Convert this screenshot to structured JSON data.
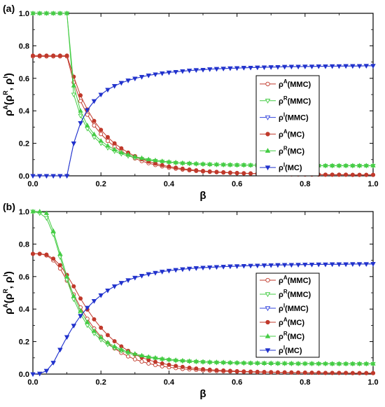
{
  "chart_data": [
    {
      "type": "line",
      "panel_label": "(a)",
      "xlabel": "β",
      "ylabel": "ρA(ρR, ρI)",
      "xlim": [
        0,
        1
      ],
      "ylim": [
        0,
        1
      ],
      "xticks": [
        "0.0",
        "0.2",
        "0.4",
        "0.6",
        "0.8",
        "1.0"
      ],
      "yticks": [
        "0.0",
        "0.2",
        "0.4",
        "0.6",
        "0.8",
        "1.0"
      ],
      "legend_position": "center-right",
      "grid": false,
      "x": [
        0,
        0.02,
        0.04,
        0.06,
        0.08,
        0.1,
        0.12,
        0.14,
        0.16,
        0.18,
        0.2,
        0.22,
        0.24,
        0.26,
        0.28,
        0.3,
        0.32,
        0.34,
        0.36,
        0.38,
        0.4,
        0.42,
        0.44,
        0.46,
        0.48,
        0.5,
        0.52,
        0.54,
        0.56,
        0.58,
        0.6,
        0.62,
        0.64,
        0.66,
        0.68,
        0.7,
        0.72,
        0.74,
        0.76,
        0.78,
        0.8,
        0.82,
        0.84,
        0.86,
        0.88,
        0.9,
        0.92,
        0.94,
        0.96,
        0.98,
        1.0
      ],
      "series": [
        {
          "name": "ρA(MMC)",
          "base": "ρ",
          "sup": "A",
          "suffix": "(MMC)",
          "color": "#c0392b",
          "marker": "circle",
          "filled": false,
          "values": [
            0.735,
            0.735,
            0.735,
            0.735,
            0.735,
            0.735,
            0.575,
            0.46,
            0.376,
            0.31,
            0.257,
            0.215,
            0.18,
            0.151,
            0.127,
            0.107,
            0.091,
            0.078,
            0.067,
            0.058,
            0.05,
            0.044,
            0.039,
            0.034,
            0.03,
            0.027,
            0.024,
            0.022,
            0.02,
            0.018,
            0.016,
            0.015,
            0.014,
            0.013,
            0.012,
            0.011,
            0.01,
            0.01,
            0.009,
            0.009,
            0.008,
            0.008,
            0.008,
            0.007,
            0.007,
            0.007,
            0.007,
            0.006,
            0.006,
            0.006,
            0.006
          ]
        },
        {
          "name": "ρR(MMC)",
          "base": "ρ",
          "sup": "R",
          "suffix": "(MMC)",
          "color": "#44cc44",
          "marker": "triangle-down",
          "filled": false,
          "values": [
            1.0,
            1.0,
            1.0,
            1.0,
            1.0,
            1.0,
            0.5,
            0.37,
            0.29,
            0.238,
            0.2,
            0.172,
            0.151,
            0.135,
            0.122,
            0.112,
            0.104,
            0.097,
            0.092,
            0.087,
            0.083,
            0.08,
            0.077,
            0.075,
            0.073,
            0.071,
            0.07,
            0.069,
            0.068,
            0.067,
            0.066,
            0.066,
            0.065,
            0.065,
            0.064,
            0.064,
            0.064,
            0.063,
            0.063,
            0.063,
            0.063,
            0.062,
            0.062,
            0.062,
            0.062,
            0.062,
            0.062,
            0.062,
            0.062,
            0.062,
            0.062
          ]
        },
        {
          "name": "ρI(MMC)",
          "base": "ρ",
          "sup": "I",
          "suffix": "(MMC)",
          "color": "#3344dd",
          "marker": "triangle-down",
          "filled": false,
          "values": [
            0.0,
            0.0,
            0.0,
            0.0,
            0.0,
            0.0,
            0.2,
            0.325,
            0.405,
            0.46,
            0.5,
            0.53,
            0.553,
            0.572,
            0.587,
            0.599,
            0.609,
            0.618,
            0.625,
            0.631,
            0.636,
            0.64,
            0.644,
            0.648,
            0.651,
            0.653,
            0.656,
            0.658,
            0.66,
            0.662,
            0.663,
            0.665,
            0.666,
            0.667,
            0.668,
            0.669,
            0.67,
            0.671,
            0.672,
            0.672,
            0.673,
            0.673,
            0.674,
            0.674,
            0.675,
            0.675,
            0.676,
            0.676,
            0.676,
            0.677,
            0.677
          ]
        },
        {
          "name": "ρA(MC)",
          "base": "ρ",
          "sup": "A",
          "suffix": "(MC)",
          "color": "#c0392b",
          "marker": "circle",
          "filled": true,
          "values": [
            0.74,
            0.74,
            0.74,
            0.74,
            0.74,
            0.74,
            0.61,
            0.495,
            0.408,
            0.338,
            0.283,
            0.238,
            0.2,
            0.169,
            0.143,
            0.121,
            0.103,
            0.088,
            0.076,
            0.066,
            0.057,
            0.05,
            0.044,
            0.039,
            0.034,
            0.03,
            0.027,
            0.024,
            0.022,
            0.02,
            0.018,
            0.016,
            0.015,
            0.014,
            0.013,
            0.012,
            0.011,
            0.01,
            0.01,
            0.009,
            0.009,
            0.008,
            0.008,
            0.007,
            0.007,
            0.007,
            0.007,
            0.006,
            0.006,
            0.006,
            0.006
          ]
        },
        {
          "name": "ρR(MC)",
          "base": "ρ",
          "sup": "R",
          "suffix": "(MC)",
          "color": "#44cc44",
          "marker": "triangle-up",
          "filled": true,
          "values": [
            1.0,
            1.0,
            1.0,
            1.0,
            1.0,
            1.0,
            0.555,
            0.4,
            0.31,
            0.255,
            0.215,
            0.185,
            0.162,
            0.144,
            0.13,
            0.118,
            0.109,
            0.101,
            0.095,
            0.09,
            0.086,
            0.082,
            0.079,
            0.077,
            0.075,
            0.073,
            0.071,
            0.07,
            0.069,
            0.068,
            0.067,
            0.067,
            0.066,
            0.066,
            0.065,
            0.065,
            0.065,
            0.064,
            0.064,
            0.064,
            0.064,
            0.063,
            0.063,
            0.063,
            0.063,
            0.063,
            0.063,
            0.063,
            0.063,
            0.063,
            0.063
          ]
        },
        {
          "name": "ρI(MC)",
          "base": "ρ",
          "sup": "I",
          "suffix": "(MC)",
          "color": "#2233cc",
          "marker": "triangle-down",
          "filled": true,
          "values": [
            0.0,
            0.0,
            0.0,
            0.0,
            0.0,
            0.0,
            0.2,
            0.325,
            0.405,
            0.46,
            0.5,
            0.53,
            0.553,
            0.572,
            0.587,
            0.599,
            0.609,
            0.618,
            0.625,
            0.631,
            0.636,
            0.64,
            0.644,
            0.648,
            0.651,
            0.653,
            0.656,
            0.658,
            0.66,
            0.662,
            0.663,
            0.665,
            0.666,
            0.667,
            0.668,
            0.669,
            0.67,
            0.671,
            0.672,
            0.672,
            0.673,
            0.673,
            0.674,
            0.674,
            0.675,
            0.675,
            0.676,
            0.676,
            0.676,
            0.677,
            0.677
          ]
        }
      ]
    },
    {
      "type": "line",
      "panel_label": "(b)",
      "xlabel": "β",
      "ylabel": "ρA(ρR, ρI)",
      "xlim": [
        0,
        1
      ],
      "ylim": [
        0,
        1
      ],
      "xticks": [
        "0.0",
        "0.2",
        "0.4",
        "0.6",
        "0.8",
        "1.0"
      ],
      "yticks": [
        "0.0",
        "0.2",
        "0.4",
        "0.6",
        "0.8",
        "1.0"
      ],
      "legend_position": "bottom-right",
      "grid": false,
      "x": [
        0,
        0.02,
        0.04,
        0.06,
        0.08,
        0.1,
        0.12,
        0.14,
        0.16,
        0.18,
        0.2,
        0.22,
        0.24,
        0.26,
        0.28,
        0.3,
        0.32,
        0.34,
        0.36,
        0.38,
        0.4,
        0.42,
        0.44,
        0.46,
        0.48,
        0.5,
        0.52,
        0.54,
        0.56,
        0.58,
        0.6,
        0.62,
        0.64,
        0.66,
        0.68,
        0.7,
        0.72,
        0.74,
        0.76,
        0.78,
        0.8,
        0.82,
        0.84,
        0.86,
        0.88,
        0.9,
        0.92,
        0.94,
        0.96,
        0.98,
        1.0
      ],
      "series": [
        {
          "name": "ρA(MMC)",
          "base": "ρ",
          "sup": "A",
          "suffix": "(MMC)",
          "color": "#c0392b",
          "marker": "circle",
          "filled": false,
          "values": [
            0.74,
            0.74,
            0.73,
            0.7,
            0.65,
            0.575,
            0.49,
            0.41,
            0.34,
            0.28,
            0.23,
            0.19,
            0.158,
            0.131,
            0.109,
            0.091,
            0.077,
            0.065,
            0.056,
            0.048,
            0.042,
            0.037,
            0.032,
            0.029,
            0.026,
            0.023,
            0.021,
            0.019,
            0.017,
            0.016,
            0.015,
            0.014,
            0.013,
            0.012,
            0.011,
            0.011,
            0.01,
            0.01,
            0.009,
            0.009,
            0.008,
            0.008,
            0.008,
            0.007,
            0.007,
            0.007,
            0.007,
            0.006,
            0.006,
            0.006,
            0.006
          ]
        },
        {
          "name": "ρR(MMC)",
          "base": "ρ",
          "sup": "R",
          "suffix": "(MMC)",
          "color": "#44cc44",
          "marker": "triangle-down",
          "filled": false,
          "values": [
            1.0,
            0.99,
            0.96,
            0.86,
            0.72,
            0.58,
            0.46,
            0.37,
            0.3,
            0.25,
            0.211,
            0.182,
            0.16,
            0.143,
            0.129,
            0.118,
            0.109,
            0.102,
            0.096,
            0.091,
            0.087,
            0.083,
            0.08,
            0.078,
            0.076,
            0.074,
            0.072,
            0.071,
            0.07,
            0.069,
            0.068,
            0.067,
            0.067,
            0.066,
            0.066,
            0.065,
            0.065,
            0.065,
            0.064,
            0.064,
            0.064,
            0.064,
            0.063,
            0.063,
            0.063,
            0.063,
            0.063,
            0.063,
            0.063,
            0.063,
            0.063
          ]
        },
        {
          "name": "ρI(MMC)",
          "base": "ρ",
          "sup": "I",
          "suffix": "(MMC)",
          "color": "#3344dd",
          "marker": "triangle-down",
          "filled": false,
          "values": [
            0.0,
            0.003,
            0.02,
            0.07,
            0.15,
            0.228,
            0.298,
            0.358,
            0.408,
            0.45,
            0.485,
            0.515,
            0.54,
            0.561,
            0.578,
            0.593,
            0.605,
            0.615,
            0.623,
            0.63,
            0.636,
            0.641,
            0.645,
            0.649,
            0.652,
            0.655,
            0.657,
            0.659,
            0.661,
            0.663,
            0.664,
            0.666,
            0.667,
            0.668,
            0.669,
            0.67,
            0.671,
            0.672,
            0.672,
            0.673,
            0.674,
            0.674,
            0.675,
            0.675,
            0.676,
            0.676,
            0.676,
            0.677,
            0.677,
            0.677,
            0.678
          ]
        },
        {
          "name": "ρA(MC)",
          "base": "ρ",
          "sup": "A",
          "suffix": "(MC)",
          "color": "#c0392b",
          "marker": "circle",
          "filled": true,
          "values": [
            0.74,
            0.74,
            0.735,
            0.71,
            0.67,
            0.61,
            0.54,
            0.465,
            0.397,
            0.337,
            0.285,
            0.24,
            0.202,
            0.17,
            0.143,
            0.12,
            0.102,
            0.087,
            0.075,
            0.065,
            0.057,
            0.05,
            0.044,
            0.039,
            0.034,
            0.03,
            0.027,
            0.024,
            0.022,
            0.02,
            0.018,
            0.016,
            0.015,
            0.014,
            0.013,
            0.012,
            0.011,
            0.01,
            0.01,
            0.009,
            0.009,
            0.008,
            0.008,
            0.007,
            0.007,
            0.007,
            0.007,
            0.006,
            0.006,
            0.006,
            0.006
          ]
        },
        {
          "name": "ρR(MC)",
          "base": "ρ",
          "sup": "R",
          "suffix": "(MC)",
          "color": "#44cc44",
          "marker": "triangle-up",
          "filled": true,
          "values": [
            1.0,
            1.0,
            0.99,
            0.88,
            0.74,
            0.6,
            0.48,
            0.39,
            0.32,
            0.265,
            0.225,
            0.194,
            0.17,
            0.151,
            0.136,
            0.124,
            0.114,
            0.106,
            0.1,
            0.094,
            0.09,
            0.086,
            0.083,
            0.08,
            0.078,
            0.076,
            0.074,
            0.073,
            0.072,
            0.071,
            0.07,
            0.069,
            0.068,
            0.068,
            0.067,
            0.067,
            0.066,
            0.066,
            0.066,
            0.065,
            0.065,
            0.065,
            0.065,
            0.065,
            0.064,
            0.064,
            0.064,
            0.064,
            0.064,
            0.064,
            0.064
          ]
        },
        {
          "name": "ρI(MC)",
          "base": "ρ",
          "sup": "I",
          "suffix": "(MC)",
          "color": "#2233cc",
          "marker": "triangle-down",
          "filled": true,
          "values": [
            0.0,
            0.003,
            0.02,
            0.07,
            0.15,
            0.228,
            0.298,
            0.358,
            0.408,
            0.45,
            0.485,
            0.515,
            0.54,
            0.561,
            0.578,
            0.593,
            0.605,
            0.615,
            0.623,
            0.63,
            0.636,
            0.641,
            0.645,
            0.649,
            0.652,
            0.655,
            0.657,
            0.659,
            0.661,
            0.663,
            0.664,
            0.666,
            0.667,
            0.668,
            0.669,
            0.67,
            0.671,
            0.672,
            0.672,
            0.673,
            0.674,
            0.674,
            0.675,
            0.675,
            0.676,
            0.676,
            0.676,
            0.677,
            0.677,
            0.677,
            0.678
          ]
        }
      ]
    }
  ]
}
